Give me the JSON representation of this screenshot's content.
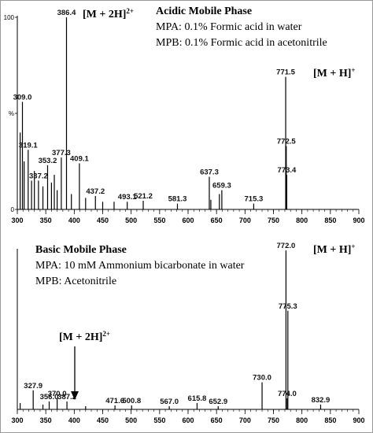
{
  "chart_data": [
    {
      "type": "stem",
      "title": "Acidic Mobile Phase",
      "notes": [
        "MPA: 0.1% Formic acid in water",
        "MPB: 0.1% Formic acid in acetonitrile"
      ],
      "annotations": [
        {
          "text": "[M + 2H]",
          "sup": "2+"
        },
        {
          "text": "[M + H]",
          "sup": "+"
        }
      ],
      "color": "#000000",
      "x": [
        305,
        309.0,
        312,
        319.1,
        325,
        330,
        337.2,
        345,
        353.2,
        360,
        365,
        370,
        377.3,
        386.4,
        395,
        409.1,
        420,
        437.2,
        450,
        470,
        493.1,
        521.2,
        581.3,
        637.3,
        640,
        655,
        659.3,
        715.3,
        771.5,
        772.5,
        773.4
      ],
      "x_labels": [
        null,
        "309.0",
        null,
        "319.1",
        null,
        null,
        "337.2",
        null,
        "353.2",
        null,
        null,
        null,
        "377.3",
        "386.4",
        null,
        "409.1",
        null,
        "437.2",
        null,
        null,
        "493.1",
        "521.2",
        "581.3",
        "637.3",
        null,
        null,
        "659.3",
        "715.3",
        "771.5",
        "772.5",
        "773.4"
      ],
      "values": [
        40,
        56,
        25,
        31,
        15,
        20,
        15,
        12,
        23,
        14,
        18,
        10,
        27,
        100,
        8,
        24,
        6,
        7,
        4,
        4,
        4,
        4.5,
        3,
        17,
        5,
        8,
        10,
        3,
        69,
        33,
        18
      ],
      "xlim": [
        300,
        900
      ],
      "xticks": [
        300,
        350,
        400,
        450,
        500,
        550,
        600,
        650,
        700,
        750,
        800,
        850,
        900
      ],
      "ylim": [
        0,
        100
      ],
      "yticks": [
        0,
        {
          "value": 50,
          "label": "%"
        },
        100
      ]
    },
    {
      "type": "stem",
      "title": "Basic Mobile Phase",
      "notes": [
        "MPA: 10 mM Ammonium bicarbonate in water",
        "MPB: Acetonitrile"
      ],
      "annotations": [
        {
          "text": "[M + H]",
          "sup": "+"
        },
        {
          "text": "[M + 2H]",
          "sup": "2+"
        }
      ],
      "color": "#000000",
      "x": [
        305,
        327.9,
        345,
        356.0,
        370.0,
        387.2,
        420,
        471.6,
        500.8,
        567.0,
        615.8,
        652.9,
        730.0,
        772.0,
        774.0,
        775.3,
        832.9
      ],
      "x_labels": [
        null,
        "327.9",
        null,
        "356.0",
        "370.0",
        "387.2",
        null,
        "471.6",
        "500.8",
        "567.0",
        "615.8",
        "652.9",
        "730.0",
        "772.0",
        "774.0",
        "775.3",
        "832.9"
      ],
      "values": [
        4,
        12,
        3,
        5,
        7,
        5,
        2,
        2.5,
        2.5,
        2,
        4,
        2,
        17,
        100,
        7,
        62,
        3
      ],
      "xlim": [
        300,
        900
      ],
      "xticks": [
        300,
        350,
        400,
        450,
        500,
        550,
        600,
        650,
        700,
        750,
        800,
        850,
        900
      ],
      "ylim": [
        0,
        100
      ]
    }
  ]
}
